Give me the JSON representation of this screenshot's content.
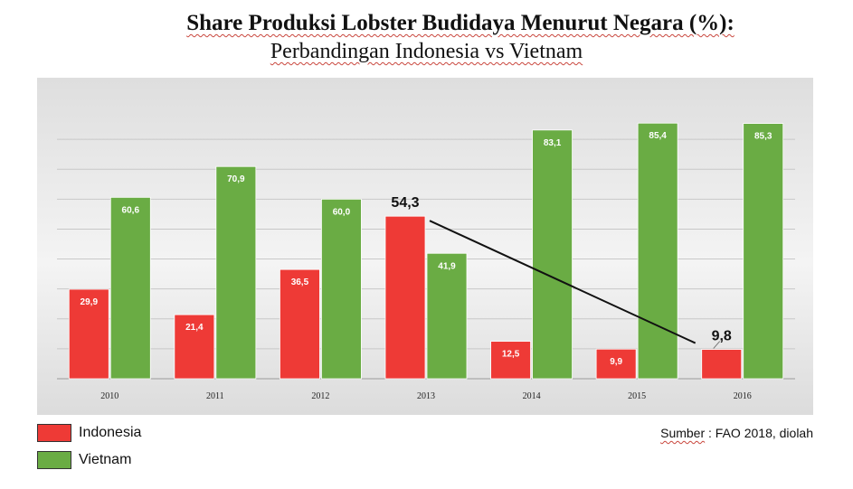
{
  "title": {
    "line1": "Share Produksi Lobster Budidaya Menurut Negara (%):",
    "line2": "Perbandingan Indonesia vs Vietnam"
  },
  "source": {
    "prefix": "Sumber",
    "rest": " : FAO 2018, diolah"
  },
  "legend": [
    {
      "label": "Indonesia",
      "color": "#ee3a36"
    },
    {
      "label": "Vietnam",
      "color": "#6aac44"
    }
  ],
  "chart_data": {
    "type": "bar",
    "categories": [
      "2010",
      "2011",
      "2012",
      "2013",
      "2014",
      "2015",
      "2016"
    ],
    "series": [
      {
        "name": "Indonesia",
        "color": "#ee3a36",
        "values": [
          29.9,
          21.4,
          36.5,
          54.3,
          12.5,
          9.9,
          9.8
        ],
        "labels": [
          "29,9",
          "21,4",
          "36,5",
          "54,3",
          "12,5",
          "9,9",
          "9,8"
        ]
      },
      {
        "name": "Vietnam",
        "color": "#6aac44",
        "values": [
          60.6,
          70.9,
          60.0,
          41.9,
          83.1,
          85.4,
          85.3
        ],
        "labels": [
          "60,6",
          "70,9",
          "60,0",
          "41,9",
          "83,1",
          "85,4",
          "85,3"
        ]
      }
    ],
    "ylim": [
      0,
      90
    ],
    "grid": true,
    "legend_position": "bottom-left",
    "annotations": [
      {
        "type": "trend-line",
        "from": "2013",
        "to": "2016",
        "series": "Indonesia"
      }
    ],
    "emphasized_labels": [
      "54,3",
      "9,8"
    ]
  }
}
